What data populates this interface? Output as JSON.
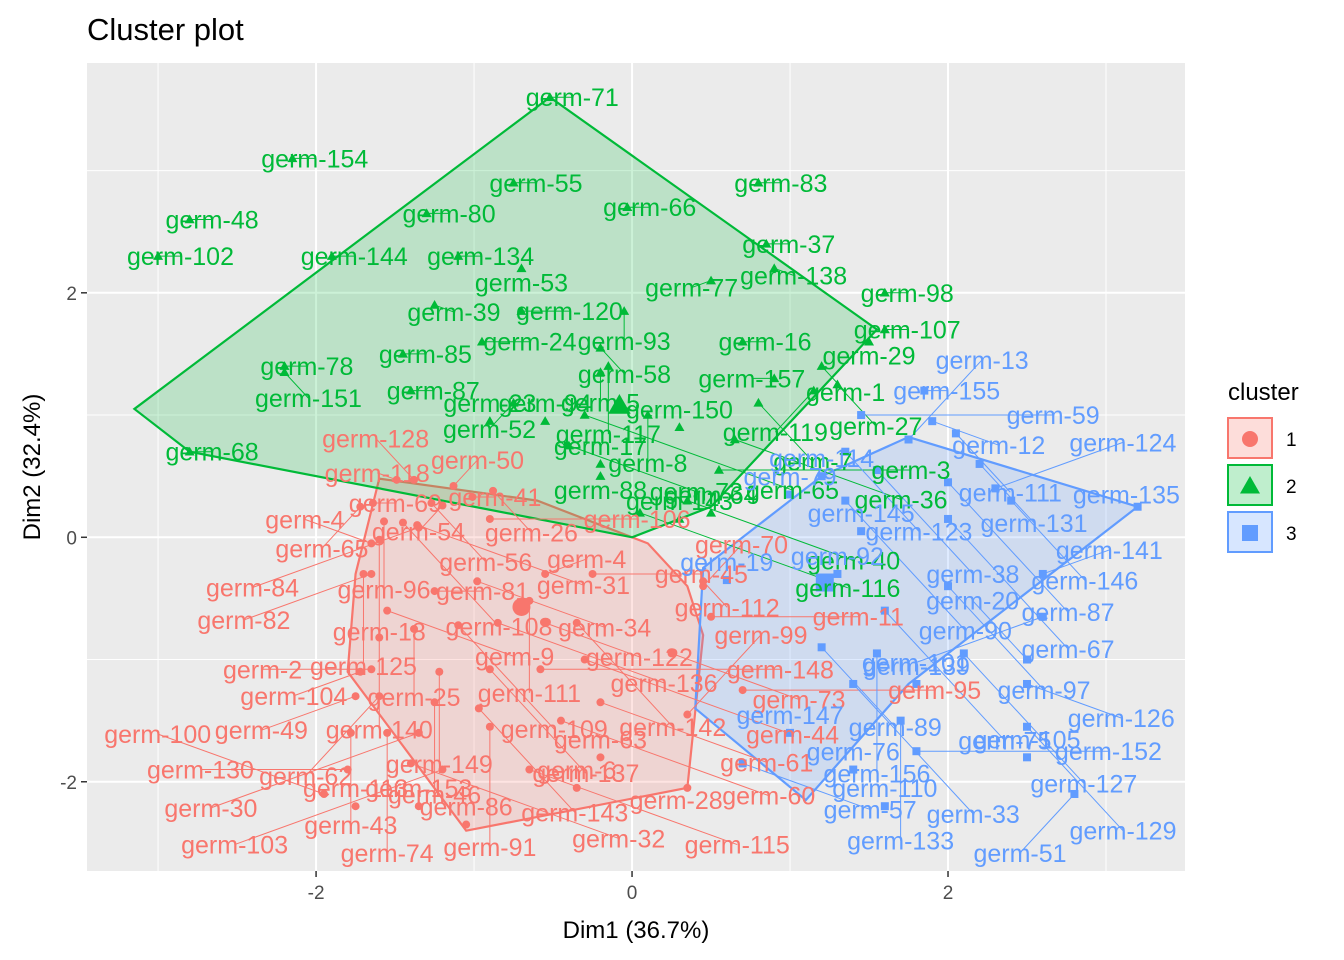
{
  "chart_data": {
    "type": "scatter",
    "title": "Cluster plot",
    "xlabel": "Dim1 (36.7%)",
    "ylabel": "Dim2 (32.4%)",
    "xlim": [
      -3.45,
      3.5
    ],
    "ylim": [
      -2.73,
      3.88
    ],
    "xticks": [
      -2,
      0,
      2
    ],
    "yticks": [
      -2,
      0,
      2
    ],
    "xtick_labels": [
      "-2",
      "0",
      "2"
    ],
    "ytick_labels": [
      "-2",
      "0",
      "2"
    ],
    "grid": true,
    "legend": {
      "title": "cluster",
      "position": "right",
      "entries": [
        {
          "label": "1",
          "color": "#F8766D",
          "shape": "circle"
        },
        {
          "label": "2",
          "color": "#00BA38",
          "shape": "triangle"
        },
        {
          "label": "3",
          "color": "#619CFF",
          "shape": "square"
        }
      ]
    },
    "series": [
      {
        "name": "1",
        "color": "#F8766D",
        "shape": "circle",
        "points": [
          {
            "label": "germ-69",
            "x": -1.64,
            "y": 0.28
          },
          {
            "label": "germ-118",
            "x": -1.49,
            "y": 0.47
          },
          {
            "label": "germ-41",
            "x": -1.01,
            "y": 0.33
          },
          {
            "label": "germ-128",
            "x": -1.38,
            "y": 0.47
          },
          {
            "label": "germ-50",
            "x": -1.13,
            "y": 0.42
          },
          {
            "label": "germ-26",
            "x": -0.88,
            "y": 0.38
          },
          {
            "label": "germ-54",
            "x": -1.2,
            "y": 0.26
          },
          {
            "label": "germ-65",
            "x": -1.72,
            "y": 0.25
          },
          {
            "label": "germ-56",
            "x": -1.27,
            "y": 0.28
          },
          {
            "label": "germ-96",
            "x": -1.57,
            "y": 0.13
          },
          {
            "label": "germ-108",
            "x": -1.45,
            "y": 0.12
          },
          {
            "label": "germ-31",
            "x": -1.36,
            "y": 0.1
          },
          {
            "label": "germ-4",
            "x": -1.65,
            "y": -0.05
          },
          {
            "label": "germ-18",
            "x": -1.6,
            "y": -0.02
          },
          {
            "label": "germ-84",
            "x": -1.35,
            "y": 0.08
          },
          {
            "label": "germ-106",
            "x": -0.9,
            "y": 0.15
          },
          {
            "label": "germ-125",
            "x": -1.7,
            "y": -0.3
          },
          {
            "label": "germ-82",
            "x": -1.65,
            "y": -0.3
          },
          {
            "label": "germ-9",
            "x": -1.55,
            "y": -0.6
          },
          {
            "label": "germ-81",
            "x": -1.25,
            "y": -0.44
          },
          {
            "label": "germ-34",
            "x": -0.98,
            "y": -0.36
          },
          {
            "label": "germ-111",
            "x": -0.65,
            "y": -0.52
          },
          {
            "label": "germ-4",
            "x": -0.55,
            "y": -0.3
          },
          {
            "label": "germ-45",
            "x": -0.25,
            "y": -0.3
          },
          {
            "label": "germ-112",
            "x": 0.45,
            "y": -0.36
          },
          {
            "label": "germ-25",
            "x": -1.38,
            "y": -0.75
          },
          {
            "label": "germ-140",
            "x": -1.6,
            "y": -0.82
          },
          {
            "label": "germ-109",
            "x": -1.1,
            "y": -0.72
          },
          {
            "label": "germ-136",
            "x": -0.85,
            "y": -0.7
          },
          {
            "label": "germ-122",
            "x": -0.55,
            "y": -0.7
          },
          {
            "label": "germ-142",
            "x": -0.35,
            "y": -0.7
          },
          {
            "label": "germ-104",
            "x": -1.72,
            "y": -1.1
          },
          {
            "label": "germ-2",
            "x": -1.65,
            "y": -1.08
          },
          {
            "label": "germ-149",
            "x": -1.22,
            "y": -1.1
          },
          {
            "label": "germ-137",
            "x": -0.9,
            "y": -1.08
          },
          {
            "label": "germ-148",
            "x": -0.58,
            "y": -1.08
          },
          {
            "label": "germ-44",
            "x": -0.3,
            "y": -1.0
          },
          {
            "label": "germ-73",
            "x": 0.25,
            "y": -0.95
          },
          {
            "label": "germ-49",
            "x": -1.75,
            "y": -1.3
          },
          {
            "label": "germ-62",
            "x": -1.6,
            "y": -1.3
          },
          {
            "label": "germ-46",
            "x": -1.25,
            "y": -1.35
          },
          {
            "label": "germ-143",
            "x": -0.97,
            "y": -1.4
          },
          {
            "label": "germ-61",
            "x": -0.2,
            "y": -1.35
          },
          {
            "label": "germ-43",
            "x": -1.78,
            "y": -1.6
          },
          {
            "label": "germ-74",
            "x": -1.55,
            "y": -1.6
          },
          {
            "label": "germ-30",
            "x": -1.35,
            "y": -1.6
          },
          {
            "label": "germ-91",
            "x": -0.9,
            "y": -1.55
          },
          {
            "label": "germ-60",
            "x": -0.45,
            "y": -1.5
          },
          {
            "label": "germ-99",
            "x": 0.35,
            "y": -1.45
          },
          {
            "label": "germ-130",
            "x": -1.8,
            "y": -1.9
          },
          {
            "label": "germ-32",
            "x": -1.4,
            "y": -1.85
          },
          {
            "label": "germ-103",
            "x": -1.2,
            "y": -1.9
          },
          {
            "label": "germ-115",
            "x": -0.65,
            "y": -1.9
          },
          {
            "label": "germ-63",
            "x": -0.2,
            "y": -1.8
          },
          {
            "label": "germ-100",
            "x": -1.95,
            "y": -2.1
          },
          {
            "label": "germ-113",
            "x": -1.75,
            "y": -2.2
          },
          {
            "label": "germ-153",
            "x": -1.35,
            "y": -2.2
          },
          {
            "label": "germ-86",
            "x": -1.05,
            "y": -2.35
          },
          {
            "label": "germ-6",
            "x": -0.35,
            "y": -2.05
          },
          {
            "label": "germ-28",
            "x": 0.35,
            "y": -2.05
          },
          {
            "label": "germ-70",
            "x": 0.45,
            "y": -0.4
          },
          {
            "label": "germ-11",
            "x": 0.5,
            "y": -0.65
          },
          {
            "label": "germ-95",
            "x": 0.7,
            "y": -1.25
          }
        ],
        "hull": [
          [
            -1.6,
            0.48
          ],
          [
            -0.6,
            0.3
          ],
          [
            0.1,
            -0.05
          ],
          [
            0.35,
            -0.4
          ],
          [
            0.45,
            -0.8
          ],
          [
            0.35,
            -2.05
          ],
          [
            -1.05,
            -2.4
          ],
          [
            -1.8,
            -1.1
          ],
          [
            -1.75,
            -0.3
          ]
        ]
      },
      {
        "name": "2",
        "color": "#00BA38",
        "shape": "triangle",
        "points": [
          {
            "label": "germ-71",
            "x": -0.52,
            "y": 3.6
          },
          {
            "label": "germ-55",
            "x": -0.75,
            "y": 2.9
          },
          {
            "label": "germ-154",
            "x": -2.15,
            "y": 3.1
          },
          {
            "label": "germ-80",
            "x": -1.3,
            "y": 2.65
          },
          {
            "label": "germ-66",
            "x": -0.03,
            "y": 2.7
          },
          {
            "label": "germ-83",
            "x": 0.8,
            "y": 2.9
          },
          {
            "label": "germ-37",
            "x": 0.85,
            "y": 2.4
          },
          {
            "label": "germ-107",
            "x": 1.6,
            "y": 1.7
          },
          {
            "label": "germ-48",
            "x": -2.8,
            "y": 2.6
          },
          {
            "label": "germ-144",
            "x": -1.9,
            "y": 2.3
          },
          {
            "label": "germ-134",
            "x": -1.1,
            "y": 2.3
          },
          {
            "label": "germ-53",
            "x": -0.7,
            "y": 2.2
          },
          {
            "label": "germ-138",
            "x": 0.9,
            "y": 2.2
          },
          {
            "label": "germ-98",
            "x": 1.6,
            "y": 2.0
          },
          {
            "label": "germ-29",
            "x": 1.5,
            "y": 1.6
          },
          {
            "label": "germ-102",
            "x": -3.0,
            "y": 2.3
          },
          {
            "label": "germ-77",
            "x": 0.5,
            "y": 2.1
          },
          {
            "label": "germ-1",
            "x": 1.2,
            "y": 1.4
          },
          {
            "label": "germ-27",
            "x": 1.3,
            "y": 1.25
          },
          {
            "label": "germ-39",
            "x": -1.25,
            "y": 1.9
          },
          {
            "label": "germ-120",
            "x": -0.7,
            "y": 1.85
          },
          {
            "label": "germ-93",
            "x": -0.05,
            "y": 1.85
          },
          {
            "label": "germ-78",
            "x": -2.2,
            "y": 1.4
          },
          {
            "label": "germ-16",
            "x": 0.7,
            "y": 1.6
          },
          {
            "label": "germ-119",
            "x": 1.15,
            "y": 1.2
          },
          {
            "label": "germ-85",
            "x": -1.45,
            "y": 1.5
          },
          {
            "label": "germ-24",
            "x": -0.95,
            "y": 1.6
          },
          {
            "label": "germ-58",
            "x": -0.2,
            "y": 1.55
          },
          {
            "label": "germ-151",
            "x": -2.2,
            "y": 1.35
          },
          {
            "label": "germ-5",
            "x": -0.2,
            "y": 1.35
          },
          {
            "label": "germ-157",
            "x": 0.9,
            "y": 1.3
          },
          {
            "label": "germ-87",
            "x": -1.4,
            "y": 1.2
          },
          {
            "label": "germ-117",
            "x": -0.15,
            "y": 1.4
          },
          {
            "label": "germ-52",
            "x": -0.75,
            "y": 1.1
          },
          {
            "label": "germ-8",
            "x": 0.1,
            "y": 1.0
          },
          {
            "label": "germ-7",
            "x": 0.8,
            "y": 1.1
          },
          {
            "label": "germ-65",
            "x": -0.3,
            "y": 1.0
          },
          {
            "label": "germ-23",
            "x": -0.9,
            "y": 0.95
          },
          {
            "label": "germ-94",
            "x": -0.55,
            "y": 0.95
          },
          {
            "label": "germ-150",
            "x": 0.3,
            "y": 0.9
          },
          {
            "label": "germ-36",
            "x": 0.65,
            "y": 0.8
          },
          {
            "label": "germ-68",
            "x": -2.8,
            "y": 0.7
          },
          {
            "label": "germ-73",
            "x": -0.4,
            "y": 0.75
          },
          {
            "label": "germ-17",
            "x": -0.2,
            "y": 0.6
          },
          {
            "label": "germ-3",
            "x": 0.55,
            "y": 0.55
          },
          {
            "label": "germ-88",
            "x": -0.2,
            "y": 0.5
          },
          {
            "label": "germ-40",
            "x": 0.35,
            "y": 0.3
          },
          {
            "label": "germ-116",
            "x": 0.05,
            "y": 0.2
          },
          {
            "label": "germ-143",
            "x": 0.3,
            "y": 0.15
          },
          {
            "label": "germ-64",
            "x": 0.5,
            "y": 0.2
          }
        ],
        "hull": [
          [
            -3.15,
            1.05
          ],
          [
            -0.52,
            3.6
          ],
          [
            1.55,
            1.7
          ],
          [
            0.5,
            0.25
          ],
          [
            0.0,
            0.0
          ],
          [
            -2.8,
            0.7
          ]
        ]
      },
      {
        "name": "3",
        "color": "#619CFF",
        "shape": "square",
        "points": [
          {
            "label": "germ-155",
            "x": 1.85,
            "y": 1.2
          },
          {
            "label": "germ-59",
            "x": 1.45,
            "y": 1.0
          },
          {
            "label": "germ-12",
            "x": 1.9,
            "y": 0.95
          },
          {
            "label": "germ-111",
            "x": 2.05,
            "y": 0.85
          },
          {
            "label": "germ-123",
            "x": 1.35,
            "y": 0.7
          },
          {
            "label": "germ-13",
            "x": 1.75,
            "y": 0.8
          },
          {
            "label": "germ-131",
            "x": 2.2,
            "y": 0.6
          },
          {
            "label": "germ-38",
            "x": 1.55,
            "y": 0.55
          },
          {
            "label": "germ-87",
            "x": 2.0,
            "y": 0.45
          },
          {
            "label": "germ-124",
            "x": 2.3,
            "y": 0.4
          },
          {
            "label": "germ-114",
            "x": 1.2,
            "y": 0.5
          },
          {
            "label": "germ-146",
            "x": 2.4,
            "y": 0.3
          },
          {
            "label": "germ-79",
            "x": 1.0,
            "y": 0.35
          },
          {
            "label": "germ-90",
            "x": 1.35,
            "y": 0.3
          },
          {
            "label": "germ-135",
            "x": 3.2,
            "y": 0.25
          },
          {
            "label": "germ-67",
            "x": 2.0,
            "y": 0.15
          },
          {
            "label": "germ-145",
            "x": 1.45,
            "y": 0.05
          },
          {
            "label": "germ-141",
            "x": 2.6,
            "y": -0.3
          },
          {
            "label": "germ-19",
            "x": 0.6,
            "y": -0.35
          },
          {
            "label": "germ-92",
            "x": 1.3,
            "y": -0.3
          },
          {
            "label": "germ-97",
            "x": 2.0,
            "y": -0.4
          },
          {
            "label": "germ-101",
            "x": 2.6,
            "y": -0.65
          },
          {
            "label": "germ-75",
            "x": 1.6,
            "y": -0.6
          },
          {
            "label": "germ-89",
            "x": 1.2,
            "y": -0.9
          },
          {
            "label": "germ-156",
            "x": 1.55,
            "y": -0.95
          },
          {
            "label": "germ-127",
            "x": 2.1,
            "y": -0.95
          },
          {
            "label": "germ-20",
            "x": 2.5,
            "y": -1.0
          },
          {
            "label": "germ-33",
            "x": 1.4,
            "y": -1.2
          },
          {
            "label": "germ-139",
            "x": 1.8,
            "y": -1.2
          },
          {
            "label": "germ-126",
            "x": 2.5,
            "y": -1.2
          },
          {
            "label": "germ-133",
            "x": 1.7,
            "y": -1.5
          },
          {
            "label": "germ-129",
            "x": 2.5,
            "y": -1.55
          },
          {
            "label": "germ-147",
            "x": 1.0,
            "y": -1.6
          },
          {
            "label": "germ-152",
            "x": 1.8,
            "y": -1.75
          },
          {
            "label": "germ-105",
            "x": 2.5,
            "y": -1.8
          },
          {
            "label": "germ-57",
            "x": 0.7,
            "y": -1.85
          },
          {
            "label": "germ-76",
            "x": 1.4,
            "y": -1.9
          },
          {
            "label": "germ-51",
            "x": 2.8,
            "y": -2.1
          },
          {
            "label": "germ-110",
            "x": 1.6,
            "y": -2.2
          }
        ],
        "hull": [
          [
            0.45,
            -0.25
          ],
          [
            1.2,
            0.5
          ],
          [
            1.75,
            0.82
          ],
          [
            3.2,
            0.25
          ],
          [
            1.75,
            -1.2
          ],
          [
            1.1,
            -2.15
          ],
          [
            0.4,
            -1.4
          ]
        ]
      }
    ],
    "centroids": [
      {
        "cluster": "1",
        "x": -0.7,
        "y": -0.57
      },
      {
        "cluster": "2",
        "x": -0.08,
        "y": 1.08
      },
      {
        "cluster": "3",
        "x": 1.22,
        "y": -0.37
      }
    ]
  }
}
